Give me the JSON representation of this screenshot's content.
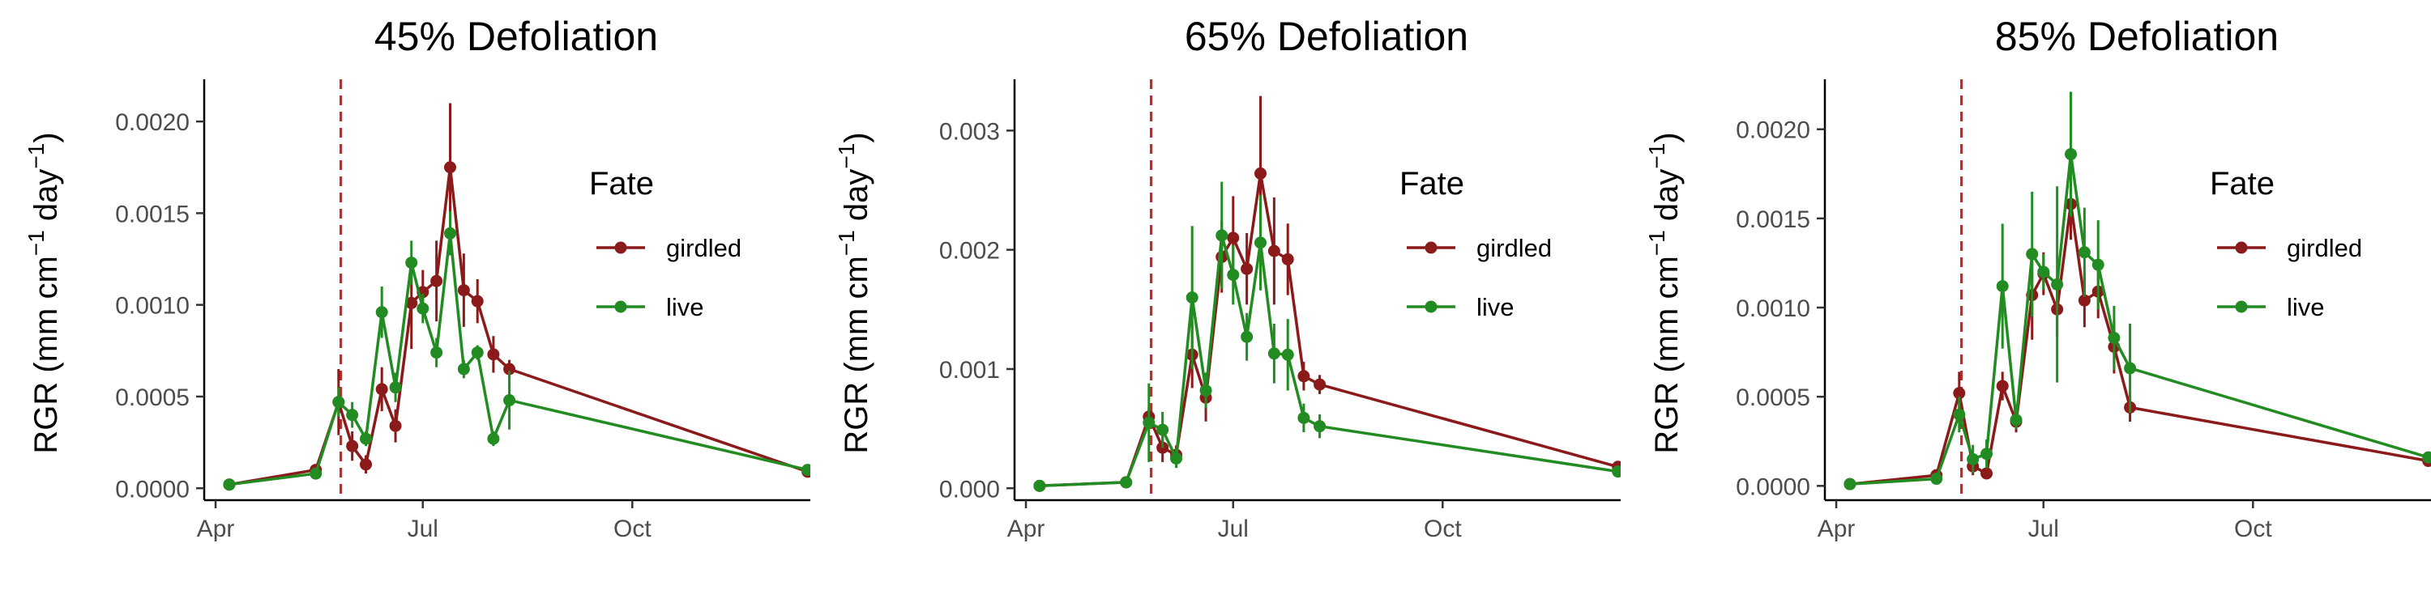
{
  "chart_data": [
    {
      "type": "line",
      "title": "45% Defoliation",
      "ylabel": "RGR (mm cm⁻¹ day⁻¹)",
      "ylabel_parts": {
        "prefix": "RGR (mm cm",
        "sup1": "−1",
        "middle": " day",
        "sup2": "−1",
        "suffix": ")"
      },
      "xlabel": "",
      "x_ticks": [
        {
          "date": "2019-04-01",
          "label": "Apr"
        },
        {
          "date": "2019-07-01",
          "label": "Jul"
        },
        {
          "date": "2019-10-01",
          "label": "Oct"
        }
      ],
      "y_ticks": [
        "0.0000",
        "0.0005",
        "0.0010",
        "0.0015",
        "0.0020"
      ],
      "ylim": [
        -6.5e-05,
        0.00223
      ],
      "xlim": [
        "2019-03-27",
        "2019-12-26"
      ],
      "vline_date": "2019-05-26",
      "legend": {
        "title": "Fate",
        "position": "right",
        "items": [
          "girdled",
          "live"
        ]
      },
      "series": [
        {
          "name": "girdled",
          "color": "#8b1a1a",
          "x": [
            "2019-04-07",
            "2019-05-15",
            "2019-05-25",
            "2019-05-31",
            "2019-06-06",
            "2019-06-13",
            "2019-06-19",
            "2019-06-26",
            "2019-07-01",
            "2019-07-07",
            "2019-07-13",
            "2019-07-19",
            "2019-07-25",
            "2019-08-01",
            "2019-08-08",
            "2019-12-17"
          ],
          "y": [
            2e-05,
            0.0001,
            0.00047,
            0.00023,
            0.00013,
            0.00054,
            0.00034,
            0.00101,
            0.00107,
            0.00113,
            0.00175,
            0.00108,
            0.00102,
            0.00073,
            0.00065,
            9e-05
          ],
          "err": [
            1e-05,
            3e-05,
            0.00018,
            8e-05,
            5e-05,
            0.00012,
            9e-05,
            0.00025,
            0.00012,
            0.00022,
            0.00035,
            0.0002,
            0.00012,
            0.0001,
            5e-05,
            2e-05
          ]
        },
        {
          "name": "live",
          "color": "#228b22",
          "x": [
            "2019-04-07",
            "2019-05-15",
            "2019-05-25",
            "2019-05-31",
            "2019-06-06",
            "2019-06-13",
            "2019-06-19",
            "2019-06-26",
            "2019-07-01",
            "2019-07-07",
            "2019-07-13",
            "2019-07-19",
            "2019-07-25",
            "2019-08-01",
            "2019-08-08",
            "2019-12-17"
          ],
          "y": [
            2e-05,
            8e-05,
            0.00047,
            0.0004,
            0.00027,
            0.00096,
            0.00055,
            0.00123,
            0.00098,
            0.00074,
            0.00139,
            0.00065,
            0.00074,
            0.00027,
            0.00048,
            0.0001
          ],
          "err": [
            1e-05,
            2e-05,
            8e-05,
            7e-05,
            4e-05,
            0.00014,
            8e-05,
            0.00012,
            8e-05,
            8e-05,
            0.00012,
            5e-05,
            4e-05,
            4e-05,
            0.00016,
            2e-05
          ]
        }
      ]
    },
    {
      "type": "line",
      "title": "65% Defoliation",
      "ylabel": "RGR (mm cm⁻¹ day⁻¹)",
      "ylabel_parts": {
        "prefix": "RGR (mm cm",
        "sup1": "−1",
        "middle": " day",
        "sup2": "−1",
        "suffix": ")"
      },
      "xlabel": "",
      "x_ticks": [
        {
          "date": "2019-04-01",
          "label": "Apr"
        },
        {
          "date": "2019-07-01",
          "label": "Jul"
        },
        {
          "date": "2019-10-01",
          "label": "Oct"
        }
      ],
      "y_ticks": [
        "0.000",
        "0.001",
        "0.002",
        "0.003"
      ],
      "ylim": [
        -0.0001,
        0.00343
      ],
      "xlim": [
        "2019-03-27",
        "2019-12-26"
      ],
      "vline_date": "2019-05-26",
      "legend": {
        "title": "Fate",
        "position": "right",
        "items": [
          "girdled",
          "live"
        ]
      },
      "series": [
        {
          "name": "girdled",
          "color": "#8b1a1a",
          "x": [
            "2019-04-07",
            "2019-05-15",
            "2019-05-25",
            "2019-05-31",
            "2019-06-06",
            "2019-06-13",
            "2019-06-19",
            "2019-06-26",
            "2019-07-01",
            "2019-07-07",
            "2019-07-13",
            "2019-07-19",
            "2019-07-25",
            "2019-08-01",
            "2019-08-08",
            "2019-12-17"
          ],
          "y": [
            2e-05,
            5e-05,
            0.0006,
            0.00034,
            0.00028,
            0.00112,
            0.00076,
            0.00194,
            0.0021,
            0.00184,
            0.00264,
            0.00199,
            0.00192,
            0.00094,
            0.00087,
            0.00018
          ],
          "err": [
            1e-05,
            2e-05,
            8e-05,
            0.00012,
            8e-05,
            0.00028,
            0.0002,
            0.0003,
            0.00035,
            0.0003,
            0.00065,
            0.00045,
            0.0003,
            0.00012,
            8e-05,
            3e-05
          ]
        },
        {
          "name": "live",
          "color": "#228b22",
          "x": [
            "2019-04-07",
            "2019-05-15",
            "2019-05-25",
            "2019-05-31",
            "2019-06-06",
            "2019-06-13",
            "2019-06-19",
            "2019-06-26",
            "2019-07-01",
            "2019-07-07",
            "2019-07-13",
            "2019-07-19",
            "2019-07-25",
            "2019-08-01",
            "2019-08-08",
            "2019-12-17"
          ],
          "y": [
            2e-05,
            5e-05,
            0.00055,
            0.00049,
            0.00025,
            0.0016,
            0.00082,
            0.00212,
            0.00179,
            0.00127,
            0.00206,
            0.00113,
            0.00112,
            0.00059,
            0.00052,
            0.00014
          ],
          "err": [
            1e-05,
            2e-05,
            0.00033,
            0.00015,
            8e-05,
            0.0006,
            0.00015,
            0.00045,
            0.00025,
            0.0002,
            0.0004,
            0.00025,
            0.0003,
            0.00012,
            0.0001,
            4e-05
          ]
        }
      ]
    },
    {
      "type": "line",
      "title": "85% Defoliation",
      "ylabel": "RGR (mm cm⁻¹ day⁻¹)",
      "ylabel_parts": {
        "prefix": "RGR (mm cm",
        "sup1": "−1",
        "middle": " day",
        "sup2": "−1",
        "suffix": ")"
      },
      "xlabel": "",
      "x_ticks": [
        {
          "date": "2019-04-01",
          "label": "Apr"
        },
        {
          "date": "2019-07-01",
          "label": "Jul"
        },
        {
          "date": "2019-10-01",
          "label": "Oct"
        }
      ],
      "y_ticks": [
        "0.0000",
        "0.0005",
        "0.0010",
        "0.0015",
        "0.0020"
      ],
      "ylim": [
        -8e-05,
        0.00228
      ],
      "xlim": [
        "2019-03-27",
        "2019-12-26"
      ],
      "vline_date": "2019-05-26",
      "legend": {
        "title": "Fate",
        "position": "right",
        "items": [
          "girdled",
          "live"
        ]
      },
      "series": [
        {
          "name": "girdled",
          "color": "#8b1a1a",
          "x": [
            "2019-04-07",
            "2019-05-15",
            "2019-05-25",
            "2019-05-31",
            "2019-06-06",
            "2019-06-13",
            "2019-06-19",
            "2019-06-26",
            "2019-07-01",
            "2019-07-07",
            "2019-07-13",
            "2019-07-19",
            "2019-07-25",
            "2019-08-01",
            "2019-08-08",
            "2019-12-17"
          ],
          "y": [
            1e-05,
            6e-05,
            0.00052,
            0.00011,
            7e-05,
            0.00056,
            0.00036,
            0.00107,
            0.00119,
            0.00099,
            0.00158,
            0.00104,
            0.00109,
            0.00078,
            0.00044,
            0.00014
          ],
          "err": [
            1e-05,
            2e-05,
            0.00012,
            5e-05,
            3e-05,
            8e-05,
            6e-05,
            0.00025,
            0.00012,
            0.00015,
            0.0002,
            0.00015,
            0.00015,
            0.00015,
            8e-05,
            2e-05
          ]
        },
        {
          "name": "live",
          "color": "#228b22",
          "x": [
            "2019-04-07",
            "2019-05-15",
            "2019-05-25",
            "2019-05-31",
            "2019-06-06",
            "2019-06-13",
            "2019-06-19",
            "2019-06-26",
            "2019-07-01",
            "2019-07-07",
            "2019-07-13",
            "2019-07-19",
            "2019-07-25",
            "2019-08-01",
            "2019-08-08",
            "2019-12-17"
          ],
          "y": [
            1e-05,
            4e-05,
            0.0004,
            0.00015,
            0.00018,
            0.00112,
            0.00037,
            0.0013,
            0.0012,
            0.00113,
            0.00186,
            0.00131,
            0.00124,
            0.00083,
            0.00066,
            0.00016
          ],
          "err": [
            1e-05,
            2e-05,
            0.0001,
            8e-05,
            8e-05,
            0.00035,
            5e-05,
            0.00035,
            0.0001,
            0.00055,
            0.00035,
            0.00025,
            0.00025,
            0.00018,
            0.00025,
            3e-05
          ]
        }
      ]
    }
  ]
}
